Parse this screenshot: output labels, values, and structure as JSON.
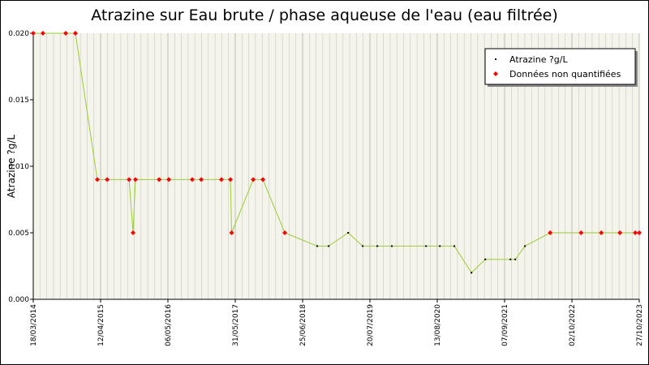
{
  "chart_data": {
    "type": "line",
    "title": "Atrazine sur Eau brute / phase aqueuse de l'eau (eau filtrée)",
    "y_label": "Atrazine ?g/L",
    "x": [
      "18/03/2014",
      "13/05/2014",
      "22/09/2014",
      "17/11/2014",
      "24/03/2015",
      "20/05/2015",
      "24/09/2015",
      "17/10/2015",
      "31/10/2015",
      "16/03/2016",
      "11/05/2016",
      "24/09/2016",
      "15/11/2016",
      "12/03/2017",
      "03/05/2017",
      "10/05/2017",
      "12/09/2017",
      "07/11/2017",
      "14/03/2018",
      "18/09/2018",
      "23/11/2018",
      "16/03/2019",
      "08/06/2019",
      "01/09/2019",
      "24/11/2019",
      "09/06/2020",
      "28/08/2020",
      "20/11/2020",
      "27/02/2021",
      "18/05/2021",
      "11/10/2021",
      "08/11/2021",
      "03/01/2022",
      "29/05/2022",
      "24/11/2022",
      "21/03/2023",
      "07/07/2023",
      "04/10/2023",
      "27/10/2023"
    ],
    "series": [
      {
        "name": "Atrazine ?g/L",
        "color": "#9acd32",
        "values": [
          0.02,
          0.02,
          0.02,
          0.02,
          0.009,
          0.009,
          0.009,
          0.005,
          0.009,
          0.009,
          0.009,
          0.009,
          0.009,
          0.009,
          0.009,
          0.005,
          0.009,
          0.009,
          0.005,
          0.004,
          0.004,
          0.005,
          0.004,
          0.004,
          0.004,
          0.004,
          0.004,
          0.004,
          0.002,
          0.003,
          0.003,
          0.003,
          0.004,
          0.005,
          0.005,
          0.005,
          0.005,
          0.005,
          0.005
        ]
      },
      {
        "name": "Données non quantifiées",
        "color": "#ff0000",
        "values": [
          0.02,
          0.02,
          0.02,
          0.02,
          0.009,
          0.009,
          0.009,
          0.005,
          0.009,
          0.009,
          0.009,
          0.009,
          0.009,
          0.009,
          0.009,
          0.005,
          0.009,
          0.009,
          0.005,
          null,
          null,
          null,
          null,
          null,
          null,
          null,
          null,
          null,
          null,
          null,
          null,
          null,
          null,
          0.005,
          0.005,
          0.005,
          0.005,
          0.005,
          0.005
        ]
      }
    ],
    "xlim": [
      "18/03/2014",
      "27/10/2023"
    ],
    "xticks": [
      "18/03/2014",
      "12/04/2015",
      "06/05/2016",
      "31/05/2017",
      "25/06/2018",
      "20/07/2019",
      "13/08/2020",
      "07/09/2021",
      "02/10/2022",
      "27/10/2023"
    ],
    "ylim": [
      0,
      0.02
    ],
    "yticks": [
      {
        "value": 0,
        "label": "0.000"
      },
      {
        "value": 0.005,
        "label": "0.005"
      },
      {
        "value": 0.01,
        "label": "0.010"
      },
      {
        "value": 0.015,
        "label": "0.015"
      },
      {
        "value": 0.02,
        "label": "0.020"
      }
    ],
    "grid": true,
    "legend": "top-right"
  }
}
